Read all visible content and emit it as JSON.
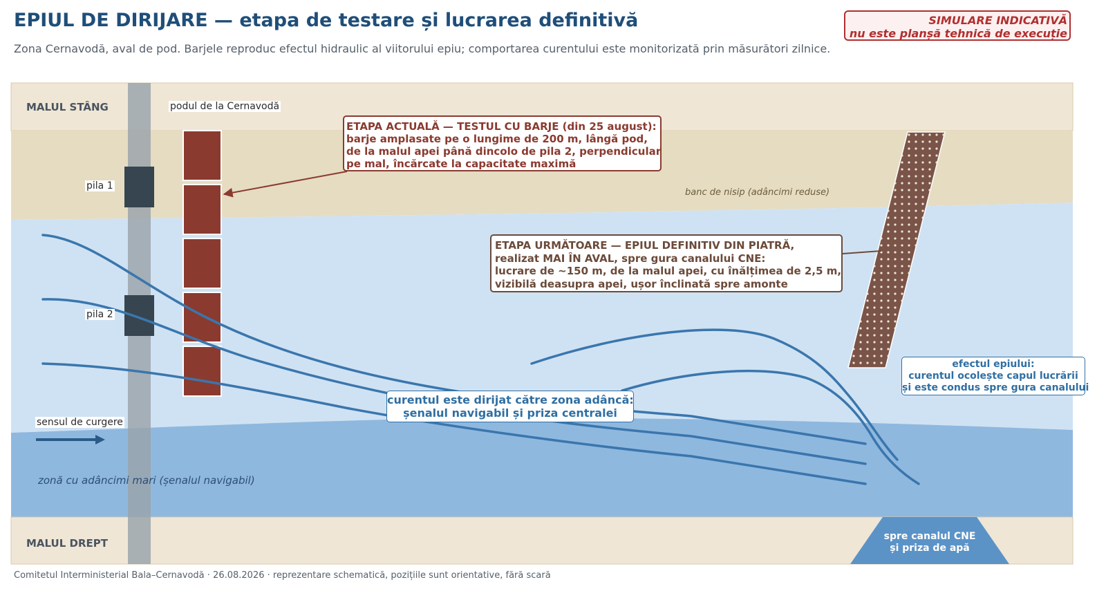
{
  "header": {
    "title": "EPIUL DE DIRIJARE — etapa de testare și lucrarea definitivă",
    "subtitle": "Zona Cernavodă, aval de pod. Barjele reproduc efectul hidraulic al viitorului epiu; comportarea curentului este monitorizată prin măsurători zilnice."
  },
  "warning": {
    "line1": "SIMULARE INDICATIVĂ",
    "line2": "nu este planșă tehnică de execuție"
  },
  "diagram": {
    "left_bank": "MALUL STÂNG",
    "right_bank": "MALUL DREPT",
    "bridge_label": "podul de la Cernavodă",
    "pier1_label": "pila 1",
    "pier2_label": "pila 2",
    "sandbank_label": "banc de nisip (adâncimi reduse)",
    "flow_label": "sensul de curgere",
    "deep_zone_label": "zonă cu adâncimi mari (șenalul navigabil)",
    "canal_label": "spre canalul CNE\nși priza de apă",
    "current_stage": "ETAPA ACTUALĂ — TESTUL CU BARJE (din 25 august):\nbarje amplasate pe o lungime de 200 m, lângă pod,\nde la malul apei până dincolo de pila 2, perpendicular\npe mal, încărcate la capacitate maximă",
    "next_stage": "ETAPA URMĂTOARE — EPIUL DEFINITIV DIN PIATRĂ,\nrealizat MAI ÎN AVAL, spre gura canalului CNE:\nlucrare de ~150 m, de la malul apei, cu înălțimea de 2,5 m,\nvizibilă deasupra apei, ușor înclinată spre amonte",
    "direction_note": "curentul este dirijat către zona adâncă:\nșenalul navigabil și priza centralei",
    "groyne_effect": "efectul epiului:\ncurentul ocolește capul lucrării\nși este condus spre gura canalului",
    "barge_count": 5
  },
  "footer": {
    "text": "Comitetul Interministerial Bala–Cernavodă · 26.08.2026 · reprezentare schematică, pozițiile sunt orientative, fără scară"
  },
  "colors": {
    "bank": "#efe6d6",
    "sandbank": "#e5dcc2",
    "water": "#cfe2f3",
    "deep_water": "#8fb8df",
    "barge": "#8b3a2f",
    "groyne": "#7a5448",
    "current": "#3a76ad",
    "pier": "#36454f",
    "canal": "#5b93c7"
  }
}
